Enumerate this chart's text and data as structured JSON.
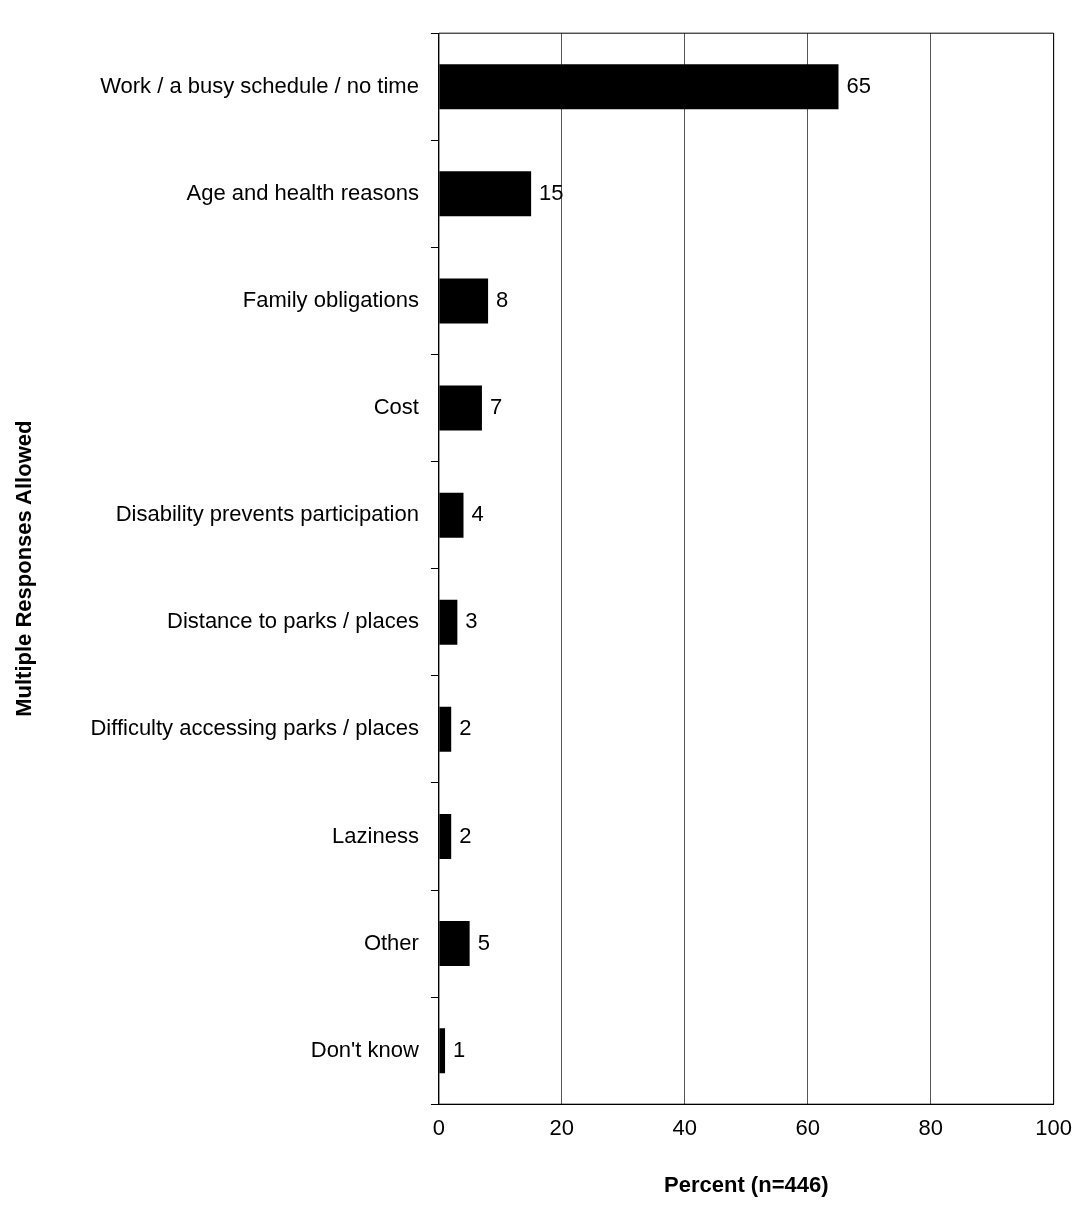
{
  "chart_data": {
    "type": "bar",
    "orientation": "horizontal",
    "categories": [
      "Work / a busy schedule / no time",
      "Age and health reasons",
      "Family obligations",
      "Cost",
      "Disability prevents participation",
      "Distance to parks / places",
      "Difficulty accessing parks / places",
      "Laziness",
      "Other",
      "Don't know"
    ],
    "values": [
      65,
      15,
      8,
      7,
      4,
      3,
      2,
      2,
      5,
      1
    ],
    "color": "#000000",
    "xlabel": "Percent (n=446)",
    "ylabel": "Multiple Responses Allowed",
    "xlim": [
      0,
      100
    ],
    "xticks": [
      0,
      20,
      40,
      60,
      80,
      100
    ],
    "grid": "x",
    "legend": false,
    "data_labels": true
  }
}
